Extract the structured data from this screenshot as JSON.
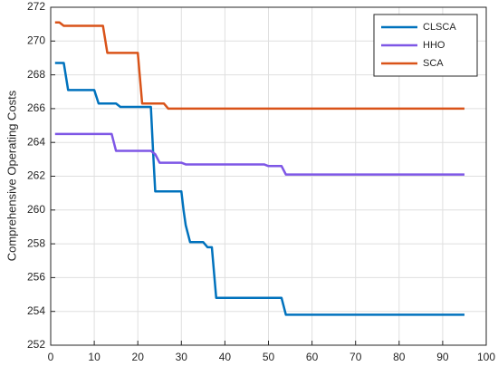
{
  "chart_data": {
    "type": "line",
    "ylabel": "Comprehensive Operating Costs",
    "xlim": [
      0,
      100
    ],
    "xticks": [
      0,
      10,
      20,
      30,
      40,
      50,
      60,
      70,
      80,
      90,
      100
    ],
    "ylim": [
      252,
      272
    ],
    "yticks": [
      252,
      254,
      256,
      258,
      260,
      262,
      264,
      266,
      268,
      270,
      272
    ],
    "grid": true,
    "legend": "upper-right",
    "series": [
      {
        "name": "CLSCA",
        "color": "#0072BD",
        "x": [
          1,
          3,
          4,
          10,
          11,
          15,
          16,
          23,
          23.5,
          24,
          30,
          30.5,
          31,
          32,
          35,
          36,
          37,
          38,
          53,
          54,
          95
        ],
        "values": [
          268.7,
          268.7,
          267.1,
          267.1,
          266.3,
          266.3,
          266.1,
          266.1,
          263.5,
          261.1,
          261.1,
          260,
          259.1,
          258.1,
          258.1,
          257.8,
          257.8,
          254.8,
          254.8,
          253.8,
          253.8
        ]
      },
      {
        "name": "HHO",
        "color": "#7E57E6",
        "x": [
          1,
          14,
          15,
          23,
          24,
          25,
          30,
          31,
          49,
          50,
          53,
          54,
          95
        ],
        "values": [
          264.5,
          264.5,
          263.5,
          263.5,
          263.3,
          262.8,
          262.8,
          262.7,
          262.7,
          262.6,
          262.6,
          262.1,
          262.1
        ]
      },
      {
        "name": "SCA",
        "color": "#D95319",
        "x": [
          1,
          2,
          3,
          12,
          13,
          20,
          21,
          26,
          27,
          95
        ],
        "values": [
          271.1,
          271.1,
          270.9,
          270.9,
          269.3,
          269.3,
          266.3,
          266.3,
          266,
          266
        ]
      }
    ]
  }
}
